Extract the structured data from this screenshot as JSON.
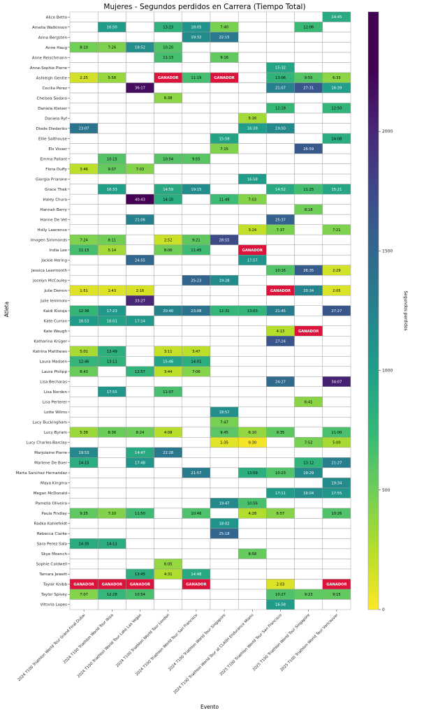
{
  "chart_data": {
    "type": "heatmap",
    "title": "Mujeres - Segundos perdidos en Carrera (Tiempo Total)",
    "xlabel": "Evento",
    "ylabel": "Atleta",
    "colorbar_label": "Segundos perdidos",
    "colorbar_range": [
      0,
      2500
    ],
    "colorbar_ticks": [
      0,
      500,
      1000,
      1500,
      2000
    ],
    "colormap": "viridis_r",
    "winner_label": "GANADOR",
    "winner_color": "#dc143c",
    "events": [
      "2024 T100 Triathlon World Tour Grand Final Dubai",
      "2024 T100 Triathlon World Tour Ibiza",
      "2024 T100 Triathlon World Tour Lake Las Vegas",
      "2024 T100 Triathlon World Tour London",
      "2024 T100 Triathlon World Tour San Francisco",
      "2024 T100 Triathlon World Tour Singapore",
      "2024 T100 Triathlon World Tour at CLASH Endurance Miami",
      "2025 T100 Triathlon World Tour San Francisco",
      "2025 T100 Triathlon World Tour Singapore",
      "2025 T100 Triathlon World Tour Vancouver"
    ],
    "athletes": [
      "Alice Betto",
      "Amelia Watkinson",
      "Anna Bergsten",
      "Anne Haug",
      "Anne Reischmann",
      "Anne-Sophie Pierre",
      "Ashleigh Gentle",
      "Cecilia Perez",
      "Chelsea Sodaro",
      "Daniela Kleiser",
      "Daniela Ryf",
      "Diede Diederiks",
      "Ellie Salthouse",
      "Els Visser",
      "Emma Pallant",
      "Flora Duffy",
      "Giorgia Priarone",
      "Grace Thek",
      "Haley Chura",
      "Hannah Berry",
      "Hanne De Vet",
      "Holly Lawrence",
      "Imogen Simmonds",
      "India Lee",
      "Jackie Hering",
      "Jessica Learmonth",
      "Jocelyn McCauley",
      "Julie Derron",
      "Julie Iemmolo",
      "Kaidi Kivioja",
      "Kate Curran",
      "Kate Waugh",
      "Katharina Krüger",
      "Katrina Matthews",
      "Laura Madsen",
      "Laura Philipp",
      "Lisa Becharas",
      "Lisa Norden",
      "Lisa Perterer",
      "Lotte Wilms",
      "Lucy Buckingham",
      "Lucy Byram",
      "Lucy Charles-Barclay",
      "Marjolaine Pierre",
      "Marlene De Boer",
      "Marta Sanchez Hernandez",
      "Maya Kingma",
      "Megan McDonald",
      "Pamella Oliveira",
      "Paula Findlay",
      "Radka Kahlefeldt",
      "Rebecca Clarke",
      "Sara Perez Sala",
      "Skye Moench",
      "Sophie Coldwell",
      "Tamara Jewett",
      "Taylor Knibb",
      "Taylor Spivey",
      "Vittoria Lopes"
    ],
    "values": [
      [
        null,
        null,
        null,
        null,
        null,
        null,
        null,
        null,
        null,
        "14:45"
      ],
      [
        null,
        "16:50",
        null,
        "13:23",
        "18:05",
        "7:40",
        null,
        null,
        "12:06",
        null
      ],
      [
        null,
        null,
        null,
        null,
        "19:32",
        "22:15",
        null,
        null,
        null,
        null
      ],
      [
        "8:10",
        "7:26",
        "18:52",
        "10:20",
        null,
        null,
        null,
        null,
        null,
        null
      ],
      [
        null,
        null,
        null,
        "11:13",
        null,
        "9:16",
        null,
        null,
        null,
        null
      ],
      [
        null,
        null,
        null,
        null,
        null,
        null,
        null,
        "15:32",
        null,
        null
      ],
      [
        "2:25",
        "5:58",
        null,
        "GANADOR",
        "11:19",
        "GANADOR",
        null,
        "13:06",
        "9:55",
        "6:33"
      ],
      [
        null,
        null,
        "36:17",
        null,
        null,
        null,
        null,
        "21:07",
        "27:31",
        "16:39"
      ],
      [
        null,
        null,
        null,
        "6:38",
        null,
        null,
        null,
        null,
        null,
        null
      ],
      [
        null,
        null,
        null,
        null,
        null,
        null,
        null,
        "12:18",
        null,
        "12:50"
      ],
      [
        null,
        null,
        null,
        null,
        null,
        null,
        "5:16",
        null,
        null,
        null
      ],
      [
        "23:07",
        null,
        null,
        null,
        null,
        null,
        "16:39",
        "19:50",
        null,
        null
      ],
      [
        null,
        null,
        null,
        null,
        null,
        "15:58",
        null,
        null,
        null,
        "14:08"
      ],
      [
        null,
        null,
        null,
        null,
        null,
        "7:15",
        null,
        null,
        "26:59",
        null
      ],
      [
        null,
        "10:15",
        null,
        "10:04",
        "9:55",
        null,
        null,
        null,
        null,
        null
      ],
      [
        "3:46",
        "9:07",
        "7:03",
        null,
        null,
        null,
        null,
        null,
        null,
        null
      ],
      [
        null,
        null,
        null,
        null,
        null,
        null,
        "16:58",
        null,
        null,
        null
      ],
      [
        null,
        "16:33",
        null,
        "14:59",
        "19:15",
        null,
        null,
        "14:52",
        "11:25",
        "15:21"
      ],
      [
        null,
        null,
        "40:43",
        "14:10",
        null,
        "11:49",
        "7:03",
        null,
        null,
        null
      ],
      [
        null,
        null,
        null,
        null,
        null,
        null,
        null,
        null,
        "8:18",
        null
      ],
      [
        null,
        null,
        "21:06",
        null,
        null,
        null,
        null,
        "25:37",
        null,
        null
      ],
      [
        null,
        null,
        null,
        null,
        null,
        null,
        "3:24",
        "7:37",
        null,
        "7:21"
      ],
      [
        "7:24",
        "8:11",
        null,
        "2:52",
        "9:21",
        "28:55",
        null,
        null,
        null,
        null
      ],
      [
        "11:15",
        "5:14",
        null,
        "8:06",
        "11:45",
        null,
        "GANADOR",
        null,
        null,
        null
      ],
      [
        null,
        null,
        "24:55",
        null,
        null,
        null,
        "17:57",
        null,
        null,
        null
      ],
      [
        null,
        null,
        null,
        null,
        null,
        null,
        null,
        "10:16",
        "26:35",
        "2:29"
      ],
      [
        null,
        null,
        null,
        null,
        "25:23",
        "19:28",
        null,
        null,
        null,
        null
      ],
      [
        "1:51",
        "1:43",
        "2:16",
        null,
        null,
        null,
        null,
        "GANADOR",
        "20:34",
        "2:05"
      ],
      [
        null,
        null,
        "33:27",
        null,
        null,
        null,
        null,
        null,
        null,
        null
      ],
      [
        "12:36",
        "17:23",
        null,
        "20:40",
        "23:08",
        "12:31",
        "13:03",
        "21:45",
        null,
        "27:27"
      ],
      [
        "16:53",
        "16:01",
        "17:14",
        null,
        null,
        null,
        null,
        null,
        null,
        null
      ],
      [
        null,
        null,
        null,
        null,
        null,
        null,
        null,
        "4:13",
        "GANADOR",
        null
      ],
      [
        null,
        null,
        null,
        null,
        null,
        null,
        null,
        "27:24",
        null,
        null
      ],
      [
        "5:01",
        "13:49",
        null,
        "3:11",
        "3:47",
        null,
        null,
        null,
        null,
        null
      ],
      [
        "12:46",
        "13:11",
        null,
        "15:46",
        "14:01",
        null,
        null,
        null,
        null,
        null
      ],
      [
        "8:43",
        null,
        "12:57",
        "3:44",
        "7:06",
        null,
        null,
        null,
        null,
        null
      ],
      [
        null,
        null,
        null,
        null,
        null,
        null,
        null,
        "24:27",
        null,
        "34:07"
      ],
      [
        null,
        "17:55",
        null,
        "11:07",
        null,
        null,
        null,
        null,
        null,
        null
      ],
      [
        null,
        null,
        null,
        null,
        null,
        null,
        null,
        null,
        "6:41",
        null
      ],
      [
        null,
        null,
        null,
        null,
        null,
        "18:57",
        null,
        null,
        null,
        null
      ],
      [
        null,
        null,
        null,
        null,
        null,
        "7:47",
        null,
        null,
        null,
        null
      ],
      [
        "5:38",
        "8:36",
        "8:24",
        "4:08",
        null,
        "9:45",
        "6:10",
        "9:35",
        null,
        "11:00"
      ],
      [
        null,
        null,
        null,
        null,
        null,
        "1:35",
        "0:30",
        null,
        "7:52",
        "5:00"
      ],
      [
        "19:53",
        null,
        "14:47",
        "22:28",
        null,
        null,
        null,
        null,
        null,
        null
      ],
      [
        "14:15",
        null,
        "17:48",
        null,
        null,
        null,
        null,
        null,
        "13:12",
        "21:27"
      ],
      [
        null,
        null,
        null,
        null,
        "21:57",
        null,
        "13:59",
        "10:23",
        "19:29",
        null
      ],
      [
        null,
        null,
        null,
        null,
        null,
        null,
        null,
        null,
        null,
        "19:34"
      ],
      [
        null,
        null,
        null,
        null,
        null,
        null,
        null,
        "17:11",
        "19:04",
        "17:55"
      ],
      [
        null,
        null,
        null,
        null,
        null,
        "19:47",
        "10:56",
        null,
        null,
        null
      ],
      [
        "9:25",
        "7:10",
        "11:50",
        null,
        "10:46",
        null,
        "4:28",
        "6:57",
        null,
        "10:26"
      ],
      [
        null,
        null,
        null,
        null,
        null,
        "18:02",
        null,
        null,
        null,
        null
      ],
      [
        null,
        null,
        null,
        null,
        null,
        "25:18",
        null,
        null,
        null,
        null
      ],
      [
        "14:35",
        "14:11",
        null,
        null,
        null,
        null,
        null,
        null,
        null,
        null
      ],
      [
        null,
        null,
        null,
        null,
        null,
        null,
        "8:58",
        null,
        null,
        null
      ],
      [
        null,
        null,
        null,
        "6:05",
        null,
        null,
        null,
        null,
        null,
        null
      ],
      [
        null,
        null,
        "13:45",
        "4:31",
        "14:48",
        null,
        null,
        null,
        null,
        null
      ],
      [
        "GANADOR",
        "GANADOR",
        "GANADOR",
        null,
        "GANADOR",
        null,
        null,
        "2:03",
        null,
        "GANADOR"
      ],
      [
        "7:07",
        "12:28",
        "10:54",
        null,
        null,
        null,
        null,
        "10:27",
        "9:23",
        "9:15"
      ],
      [
        null,
        null,
        null,
        null,
        null,
        null,
        null,
        "16:58",
        null,
        null
      ]
    ]
  }
}
